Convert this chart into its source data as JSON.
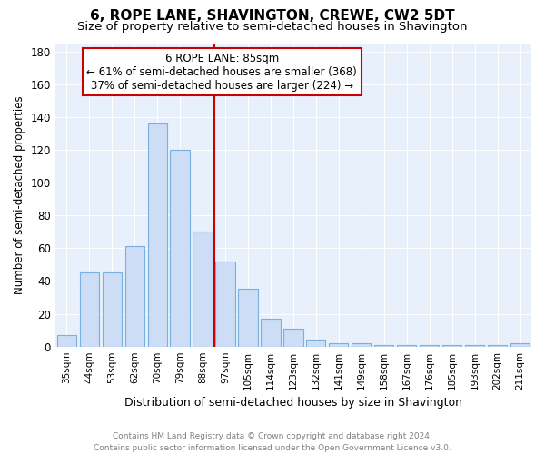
{
  "title": "6, ROPE LANE, SHAVINGTON, CREWE, CW2 5DT",
  "subtitle": "Size of property relative to semi-detached houses in Shavington",
  "xlabel": "Distribution of semi-detached houses by size in Shavington",
  "ylabel": "Number of semi-detached properties",
  "categories": [
    "35sqm",
    "44sqm",
    "53sqm",
    "62sqm",
    "70sqm",
    "79sqm",
    "88sqm",
    "97sqm",
    "105sqm",
    "114sqm",
    "123sqm",
    "132sqm",
    "141sqm",
    "149sqm",
    "158sqm",
    "167sqm",
    "176sqm",
    "185sqm",
    "193sqm",
    "202sqm",
    "211sqm"
  ],
  "values": [
    7,
    45,
    45,
    61,
    136,
    120,
    70,
    52,
    35,
    17,
    11,
    4,
    2,
    2,
    1,
    1,
    1,
    1,
    1,
    1,
    2
  ],
  "bar_color": "#ccddf5",
  "bar_edge_color": "#7ab0e0",
  "property_label": "6 ROPE LANE: 85sqm",
  "annotation_line1": "← 61% of semi-detached houses are smaller (368)",
  "annotation_line2": "37% of semi-detached houses are larger (224) →",
  "vline_color": "#cc0000",
  "vline_x": 6.5,
  "annotation_box_color": "#cc0000",
  "ylim": [
    0,
    185
  ],
  "yticks": [
    0,
    20,
    40,
    60,
    80,
    100,
    120,
    140,
    160,
    180
  ],
  "footer_line1": "Contains HM Land Registry data © Crown copyright and database right 2024.",
  "footer_line2": "Contains public sector information licensed under the Open Government Licence v3.0.",
  "background_color": "#ffffff",
  "plot_bg_color": "#e8f0fc",
  "grid_color": "#ffffff",
  "title_fontsize": 11,
  "subtitle_fontsize": 9.5,
  "bar_width": 0.85
}
